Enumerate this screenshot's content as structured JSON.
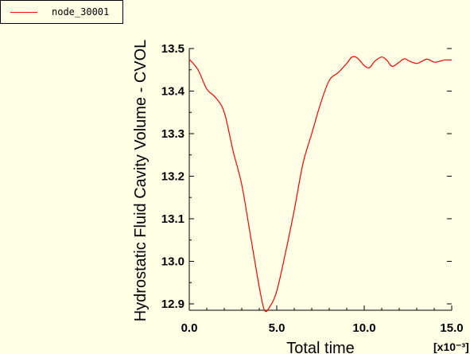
{
  "legend": {
    "series_name": "node_30001",
    "line_color": "#ff0000"
  },
  "chart_data": {
    "type": "line",
    "title": "",
    "xlabel": "Total time",
    "ylabel": "Hydrostatic Fluid Cavity Volume - CVOL",
    "x_multiplier_label": "[x10⁻³]",
    "xlim": [
      0.0,
      15.0
    ],
    "ylim": [
      12.885,
      13.5
    ],
    "x_ticks": [
      0.0,
      5.0,
      10.0,
      15.0
    ],
    "x_tick_labels": [
      "0.0",
      "5.0",
      "10.0",
      "15.0"
    ],
    "y_ticks": [
      12.9,
      13.0,
      13.1,
      13.2,
      13.3,
      13.4,
      13.5
    ],
    "y_tick_labels": [
      "12.9",
      "13.0",
      "13.1",
      "13.2",
      "13.3",
      "13.4",
      "13.5"
    ],
    "grid": false,
    "series": [
      {
        "name": "node_30001",
        "color": "#ff0000",
        "x": [
          0.0,
          0.5,
          1.0,
          1.5,
          2.0,
          2.5,
          3.0,
          3.5,
          4.0,
          4.3,
          4.6,
          5.0,
          5.5,
          6.0,
          6.5,
          7.0,
          7.5,
          8.0,
          8.5,
          9.0,
          9.3,
          9.6,
          10.0,
          10.3,
          10.6,
          11.0,
          11.3,
          11.6,
          12.0,
          12.3,
          12.6,
          13.0,
          13.3,
          13.6,
          14.0,
          14.3,
          14.6,
          15.0
        ],
        "y": [
          13.475,
          13.45,
          13.405,
          13.385,
          13.35,
          13.26,
          13.18,
          13.06,
          12.94,
          12.885,
          12.893,
          12.93,
          13.02,
          13.12,
          13.23,
          13.3,
          13.37,
          13.425,
          13.443,
          13.465,
          13.48,
          13.478,
          13.46,
          13.455,
          13.47,
          13.48,
          13.472,
          13.458,
          13.468,
          13.476,
          13.47,
          13.465,
          13.47,
          13.475,
          13.468,
          13.47,
          13.473,
          13.473
        ]
      }
    ]
  }
}
